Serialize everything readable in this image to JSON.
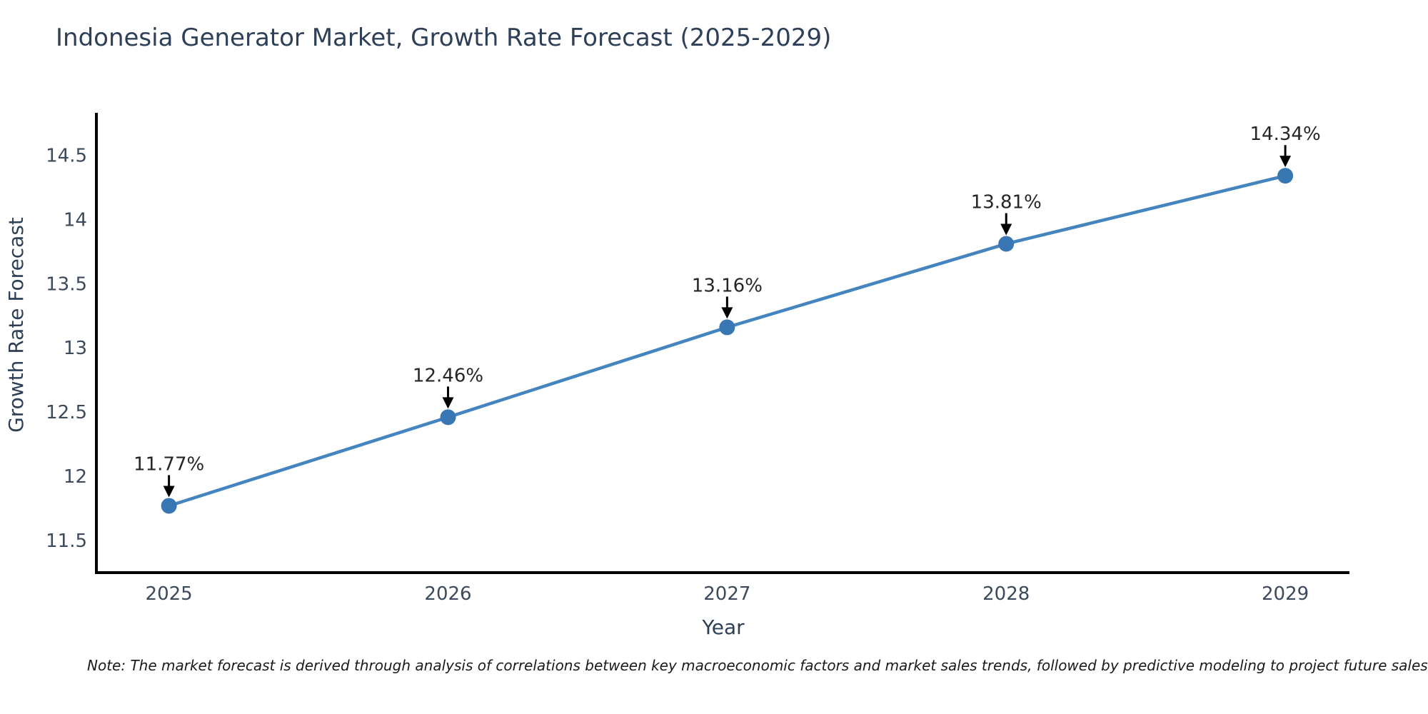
{
  "title": "Indonesia Generator Market, Growth Rate Forecast (2025-2029)",
  "note": "Note: The market forecast is derived through analysis of correlations between key macroeconomic factors and market sales trends, followed by predictive modeling to project future sales",
  "chart_data": {
    "type": "line",
    "title": "Indonesia Generator Market, Growth Rate Forecast (2025-2029)",
    "xlabel": "Year",
    "ylabel": "Growth Rate Forecast",
    "x": [
      2025,
      2026,
      2027,
      2028,
      2029
    ],
    "values": [
      11.77,
      12.46,
      13.16,
      13.81,
      14.34
    ],
    "point_labels": [
      "11.77%",
      "12.46%",
      "13.16%",
      "13.81%",
      "14.34%"
    ],
    "xticks": [
      2025,
      2026,
      2027,
      2028,
      2029
    ],
    "yticks": [
      11.5,
      12,
      12.5,
      13,
      13.5,
      14,
      14.5
    ],
    "xlim": [
      2024.74,
      2029.23
    ],
    "ylim": [
      11.25,
      14.83
    ],
    "grid": false,
    "legend": "none",
    "line_color": "#4484bf",
    "marker_color": "#3876b4",
    "annotation_color": "#262626",
    "arrow_color": "#000000"
  },
  "colors": {
    "background": "#ffffff",
    "title_text": "#2e4057",
    "tick_text": "#3d4a5c",
    "axis_spine": "#000000",
    "note_text": "#1a1a1a"
  }
}
